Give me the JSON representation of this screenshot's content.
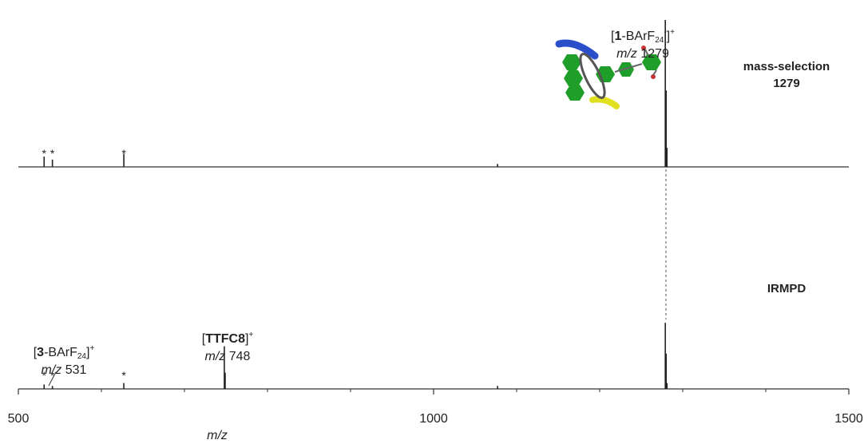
{
  "chart_data": [
    {
      "type": "stick",
      "color": "#222",
      "label_lines": [
        "mass-selection",
        "1279"
      ],
      "x": [
        531,
        541,
        627,
        1077,
        1279,
        1280,
        1281
      ],
      "values": [
        7,
        5,
        9,
        2,
        100,
        52,
        13
      ],
      "xlim": [
        500,
        1500
      ],
      "ylim": [
        0,
        100
      ],
      "markers": [
        {
          "x": 531,
          "label": "*"
        },
        {
          "x": 541,
          "label": "*"
        },
        {
          "x": 627,
          "label": "*"
        }
      ],
      "annotations": [
        {
          "lines": [
            [
              {
                "text": "["
              },
              {
                "text": "1",
                "bold": true
              },
              {
                "text": "-BArF"
              },
              {
                "text": "24",
                "sub": true
              },
              {
                "text": "-",
                "sup": true
              },
              {
                "text": "]"
              },
              {
                "text": "+",
                "sup": true
              }
            ],
            [
              {
                "text": "m/z",
                "italic": true
              },
              {
                "text": " 1279"
              }
            ]
          ]
        }
      ]
    },
    {
      "type": "stick",
      "color": "#222",
      "label_lines": [
        "IRMPD"
      ],
      "x": [
        531,
        541,
        627,
        748,
        749,
        1077,
        1279,
        1280,
        1281
      ],
      "values": [
        3,
        2,
        4,
        29,
        11,
        2,
        45,
        24,
        4
      ],
      "xlim": [
        500,
        1500
      ],
      "ylim": [
        0,
        100
      ],
      "xticks": [
        500,
        1000,
        1500
      ],
      "xminorticks": [
        600,
        700,
        800,
        900,
        1100,
        1200,
        1300,
        1400
      ],
      "xlabel": "m/z",
      "markers": [
        {
          "x": 531,
          "label": "*"
        },
        {
          "x": 541,
          "label": "*"
        },
        {
          "x": 627,
          "label": "*"
        }
      ],
      "annotations": [
        {
          "lines": [
            [
              {
                "text": "["
              },
              {
                "text": "TTFC8",
                "bold": true
              },
              {
                "text": "]"
              },
              {
                "text": "+",
                "sup": true
              }
            ],
            [
              {
                "text": "m/z",
                "italic": true
              },
              {
                "text": " 748"
              }
            ]
          ]
        },
        {
          "lines": [
            [
              {
                "text": "["
              },
              {
                "text": "3",
                "bold": true
              },
              {
                "text": "-BArF"
              },
              {
                "text": "24",
                "sub": true
              },
              {
                "text": "]"
              },
              {
                "text": "+",
                "sup": true
              }
            ],
            [
              {
                "text": "m/z",
                "italic": true
              },
              {
                "text": " 531"
              }
            ]
          ]
        }
      ]
    }
  ]
}
